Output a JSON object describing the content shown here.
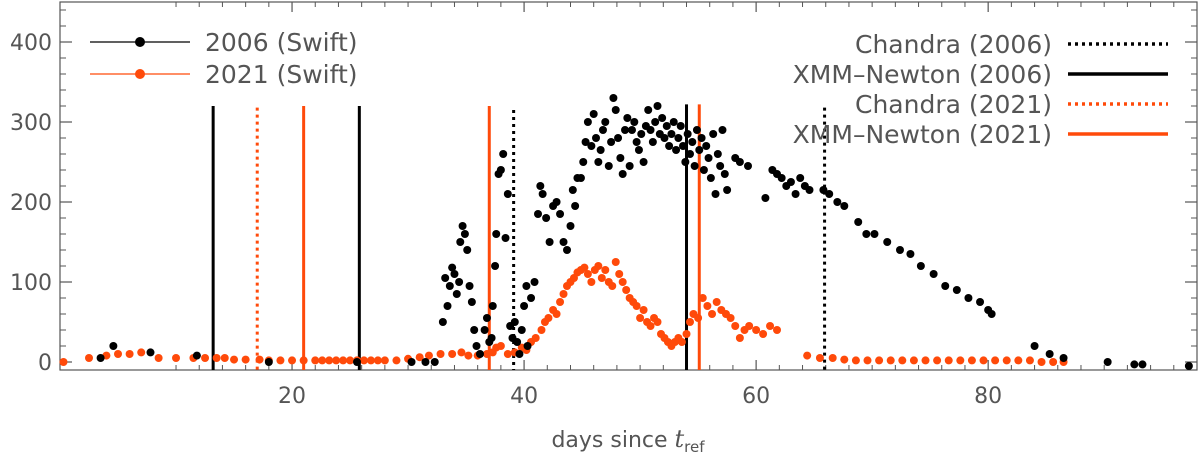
{
  "chart_data": {
    "type": "scatter",
    "xlabel": "days since ",
    "xlabel_var": "t",
    "xlabel_sub": "ref",
    "ylabel": "",
    "xlim": [
      0,
      98
    ],
    "ylim": [
      -10,
      450
    ],
    "x_ticks": [
      20,
      40,
      60,
      80
    ],
    "y_ticks": [
      0,
      100,
      200,
      300,
      400
    ],
    "colors": {
      "black": "#000000",
      "orange": "#ff4a0a",
      "axis": "#555555"
    },
    "legend_left": [
      {
        "name": "2006 (Swift)",
        "color": "#000000"
      },
      {
        "name": "2021 (Swift)",
        "color": "#ff4a0a"
      }
    ],
    "legend_right": [
      {
        "name": "Chandra (2006)",
        "color": "#000000",
        "style": "dotted"
      },
      {
        "name": "XMM–Newton (2006)",
        "color": "#000000",
        "style": "solid"
      },
      {
        "name": "Chandra (2021)",
        "color": "#ff4a0a",
        "style": "dotted"
      },
      {
        "name": "XMM–Newton (2021)",
        "color": "#ff4a0a",
        "style": "solid"
      }
    ],
    "vlines": [
      {
        "x": 13.2,
        "top": 320,
        "color": "#000000",
        "style": "solid"
      },
      {
        "x": 17.0,
        "top": 318,
        "color": "#ff4a0a",
        "style": "dotted"
      },
      {
        "x": 21.0,
        "top": 320,
        "color": "#ff4a0a",
        "style": "solid"
      },
      {
        "x": 25.8,
        "top": 320,
        "color": "#000000",
        "style": "solid"
      },
      {
        "x": 37.0,
        "top": 320,
        "color": "#ff4a0a",
        "style": "solid"
      },
      {
        "x": 39.1,
        "top": 315,
        "color": "#000000",
        "style": "dotted"
      },
      {
        "x": 54.0,
        "top": 322,
        "color": "#000000",
        "style": "solid"
      },
      {
        "x": 55.1,
        "top": 322,
        "color": "#ff4a0a",
        "style": "solid"
      },
      {
        "x": 65.9,
        "top": 318,
        "color": "#000000",
        "style": "dotted"
      }
    ],
    "series": [
      {
        "name": "2006 (Swift)",
        "color": "#000000",
        "points": [
          [
            3.5,
            5
          ],
          [
            4.6,
            20
          ],
          [
            7.8,
            12
          ],
          [
            11.8,
            8
          ],
          [
            18.0,
            0
          ],
          [
            25.6,
            0
          ],
          [
            30.3,
            0
          ],
          [
            31.5,
            0
          ],
          [
            32.3,
            0
          ],
          [
            33.0,
            50
          ],
          [
            33.2,
            105
          ],
          [
            33.4,
            70
          ],
          [
            33.6,
            95
          ],
          [
            33.8,
            118
          ],
          [
            34.0,
            110
          ],
          [
            34.2,
            85
          ],
          [
            34.4,
            100
          ],
          [
            34.5,
            150
          ],
          [
            34.7,
            170
          ],
          [
            34.9,
            160
          ],
          [
            35.1,
            140
          ],
          [
            35.3,
            95
          ],
          [
            35.5,
            75
          ],
          [
            35.7,
            40
          ],
          [
            35.9,
            20
          ],
          [
            36.2,
            10
          ],
          [
            36.6,
            40
          ],
          [
            36.8,
            55
          ],
          [
            37.0,
            25
          ],
          [
            37.2,
            30
          ],
          [
            37.3,
            70
          ],
          [
            37.5,
            120
          ],
          [
            37.6,
            160
          ],
          [
            37.8,
            235
          ],
          [
            38.0,
            240
          ],
          [
            38.2,
            260
          ],
          [
            38.4,
            155
          ],
          [
            38.6,
            210
          ],
          [
            38.8,
            45
          ],
          [
            39.0,
            30
          ],
          [
            39.2,
            50
          ],
          [
            39.4,
            25
          ],
          [
            39.6,
            10
          ],
          [
            39.8,
            40
          ],
          [
            40.0,
            70
          ],
          [
            40.2,
            95
          ],
          [
            40.3,
            20
          ],
          [
            40.6,
            80
          ],
          [
            40.9,
            100
          ],
          [
            41.2,
            185
          ],
          [
            41.4,
            220
          ],
          [
            41.6,
            210
          ],
          [
            41.9,
            180
          ],
          [
            42.2,
            150
          ],
          [
            42.5,
            195
          ],
          [
            42.8,
            200
          ],
          [
            43.1,
            185
          ],
          [
            43.4,
            150
          ],
          [
            43.7,
            140
          ],
          [
            44.0,
            170
          ],
          [
            44.2,
            215
          ],
          [
            44.4,
            195
          ],
          [
            44.6,
            230
          ],
          [
            44.9,
            230
          ],
          [
            45.1,
            250
          ],
          [
            45.3,
            275
          ],
          [
            45.5,
            300
          ],
          [
            45.8,
            270
          ],
          [
            46.0,
            310
          ],
          [
            46.2,
            280
          ],
          [
            46.4,
            250
          ],
          [
            46.6,
            265
          ],
          [
            46.8,
            290
          ],
          [
            47.0,
            300
          ],
          [
            47.3,
            245
          ],
          [
            47.5,
            275
          ],
          [
            47.7,
            330
          ],
          [
            47.9,
            315
          ],
          [
            48.1,
            280
          ],
          [
            48.3,
            255
          ],
          [
            48.5,
            235
          ],
          [
            48.7,
            290
          ],
          [
            48.9,
            305
          ],
          [
            49.1,
            245
          ],
          [
            49.3,
            290
          ],
          [
            49.5,
            300
          ],
          [
            49.7,
            275
          ],
          [
            49.9,
            265
          ],
          [
            50.1,
            285
          ],
          [
            50.3,
            250
          ],
          [
            50.5,
            295
          ],
          [
            50.7,
            315
          ],
          [
            50.9,
            290
          ],
          [
            51.1,
            275
          ],
          [
            51.3,
            300
          ],
          [
            51.5,
            320
          ],
          [
            51.7,
            285
          ],
          [
            51.9,
            305
          ],
          [
            52.1,
            280
          ],
          [
            52.3,
            295
          ],
          [
            52.5,
            270
          ],
          [
            52.7,
            285
          ],
          [
            52.9,
            300
          ],
          [
            53.1,
            265
          ],
          [
            53.3,
            280
          ],
          [
            53.5,
            295
          ],
          [
            53.7,
            270
          ],
          [
            53.9,
            250
          ],
          [
            54.1,
            285
          ],
          [
            54.3,
            260
          ],
          [
            54.5,
            275
          ],
          [
            54.7,
            245
          ],
          [
            54.9,
            290
          ],
          [
            55.1,
            265
          ],
          [
            55.3,
            280
          ],
          [
            55.5,
            240
          ],
          [
            55.7,
            270
          ],
          [
            55.9,
            255
          ],
          [
            56.1,
            230
          ],
          [
            56.3,
            285
          ],
          [
            56.5,
            210
          ],
          [
            56.7,
            260
          ],
          [
            56.9,
            245
          ],
          [
            57.1,
            290
          ],
          [
            57.3,
            235
          ],
          [
            57.5,
            215
          ],
          [
            58.2,
            255
          ],
          [
            58.6,
            250
          ],
          [
            59.3,
            245
          ],
          [
            60.8,
            205
          ],
          [
            61.4,
            240
          ],
          [
            61.8,
            235
          ],
          [
            62.2,
            230
          ],
          [
            62.6,
            220
          ],
          [
            63.0,
            225
          ],
          [
            63.4,
            210
          ],
          [
            63.8,
            230
          ],
          [
            64.2,
            220
          ],
          [
            64.6,
            215
          ],
          [
            65.8,
            215
          ],
          [
            66.3,
            210
          ],
          [
            67.0,
            200
          ],
          [
            67.6,
            195
          ],
          [
            68.8,
            175
          ],
          [
            69.5,
            160
          ],
          [
            70.2,
            160
          ],
          [
            71.3,
            150
          ],
          [
            72.4,
            140
          ],
          [
            73.3,
            135
          ],
          [
            74.2,
            120
          ],
          [
            75.3,
            110
          ],
          [
            76.3,
            95
          ],
          [
            77.3,
            90
          ],
          [
            78.3,
            80
          ],
          [
            79.3,
            75
          ],
          [
            80.0,
            65
          ],
          [
            80.3,
            60
          ],
          [
            84.0,
            20
          ],
          [
            85.3,
            10
          ],
          [
            86.5,
            5
          ],
          [
            90.3,
            0
          ],
          [
            92.6,
            -3
          ],
          [
            93.3,
            -3
          ],
          [
            97.3,
            -5
          ]
        ]
      },
      {
        "name": "2021 (Swift)",
        "color": "#ff4a0a",
        "points": [
          [
            0.3,
            0
          ],
          [
            2.5,
            5
          ],
          [
            4.0,
            8
          ],
          [
            5.0,
            10
          ],
          [
            6.0,
            10
          ],
          [
            7.0,
            12
          ],
          [
            8.5,
            5
          ],
          [
            10.0,
            5
          ],
          [
            11.5,
            5
          ],
          [
            12.5,
            5
          ],
          [
            13.5,
            5
          ],
          [
            14.2,
            5
          ],
          [
            15.0,
            3
          ],
          [
            16.0,
            3
          ],
          [
            17.2,
            3
          ],
          [
            18.0,
            2
          ],
          [
            19.0,
            2
          ],
          [
            20.0,
            2
          ],
          [
            21.0,
            2
          ],
          [
            22.0,
            2
          ],
          [
            22.6,
            2
          ],
          [
            23.2,
            2
          ],
          [
            23.8,
            2
          ],
          [
            24.4,
            2
          ],
          [
            25.0,
            2
          ],
          [
            25.6,
            2
          ],
          [
            26.2,
            2
          ],
          [
            26.8,
            2
          ],
          [
            27.4,
            2
          ],
          [
            28.0,
            2
          ],
          [
            29.0,
            2
          ],
          [
            30.0,
            4
          ],
          [
            31.0,
            6
          ],
          [
            31.8,
            8
          ],
          [
            32.8,
            10
          ],
          [
            33.8,
            10
          ],
          [
            34.6,
            12
          ],
          [
            35.2,
            8
          ],
          [
            36.0,
            8
          ],
          [
            36.8,
            10
          ],
          [
            37.3,
            12
          ],
          [
            37.6,
            18
          ],
          [
            38.0,
            20
          ],
          [
            38.6,
            10
          ],
          [
            39.2,
            12
          ],
          [
            39.8,
            18
          ],
          [
            40.2,
            15
          ],
          [
            40.6,
            25
          ],
          [
            41.0,
            30
          ],
          [
            41.5,
            40
          ],
          [
            41.8,
            50
          ],
          [
            42.1,
            55
          ],
          [
            42.5,
            65
          ],
          [
            42.8,
            60
          ],
          [
            43.1,
            75
          ],
          [
            43.4,
            85
          ],
          [
            43.7,
            95
          ],
          [
            44.0,
            100
          ],
          [
            44.3,
            105
          ],
          [
            44.6,
            112
          ],
          [
            44.9,
            115
          ],
          [
            45.2,
            118
          ],
          [
            45.5,
            110
          ],
          [
            45.8,
            100
          ],
          [
            46.1,
            115
          ],
          [
            46.4,
            120
          ],
          [
            46.7,
            105
          ],
          [
            47.0,
            115
          ],
          [
            47.3,
            100
          ],
          [
            47.6,
            95
          ],
          [
            47.9,
            125
          ],
          [
            48.2,
            110
          ],
          [
            48.5,
            100
          ],
          [
            48.8,
            90
          ],
          [
            49.1,
            80
          ],
          [
            49.4,
            75
          ],
          [
            49.7,
            70
          ],
          [
            50.0,
            55
          ],
          [
            50.3,
            65
          ],
          [
            50.6,
            50
          ],
          [
            50.9,
            45
          ],
          [
            51.2,
            55
          ],
          [
            51.5,
            50
          ],
          [
            51.8,
            35
          ],
          [
            52.1,
            30
          ],
          [
            52.4,
            25
          ],
          [
            52.7,
            20
          ],
          [
            53.0,
            25
          ],
          [
            53.3,
            30
          ],
          [
            53.6,
            25
          ],
          [
            54.0,
            35
          ],
          [
            54.3,
            50
          ],
          [
            54.6,
            60
          ],
          [
            55.0,
            55
          ],
          [
            55.4,
            80
          ],
          [
            55.8,
            70
          ],
          [
            56.2,
            60
          ],
          [
            56.6,
            75
          ],
          [
            57.0,
            65
          ],
          [
            57.4,
            60
          ],
          [
            57.8,
            55
          ],
          [
            58.2,
            45
          ],
          [
            58.6,
            30
          ],
          [
            59.0,
            40
          ],
          [
            59.4,
            45
          ],
          [
            60.0,
            40
          ],
          [
            60.6,
            35
          ],
          [
            61.2,
            45
          ],
          [
            61.8,
            40
          ],
          [
            64.4,
            8
          ],
          [
            65.5,
            5
          ],
          [
            66.6,
            5
          ],
          [
            67.6,
            3
          ],
          [
            68.6,
            2
          ],
          [
            69.6,
            2
          ],
          [
            70.6,
            2
          ],
          [
            71.6,
            2
          ],
          [
            72.6,
            2
          ],
          [
            73.6,
            2
          ],
          [
            74.6,
            2
          ],
          [
            75.6,
            2
          ],
          [
            76.6,
            2
          ],
          [
            77.6,
            2
          ],
          [
            78.6,
            2
          ],
          [
            79.6,
            2
          ],
          [
            80.6,
            2
          ],
          [
            81.6,
            2
          ],
          [
            82.6,
            2
          ],
          [
            83.6,
            2
          ],
          [
            84.6,
            0
          ],
          [
            85.6,
            0
          ],
          [
            86.5,
            0
          ]
        ]
      }
    ]
  }
}
